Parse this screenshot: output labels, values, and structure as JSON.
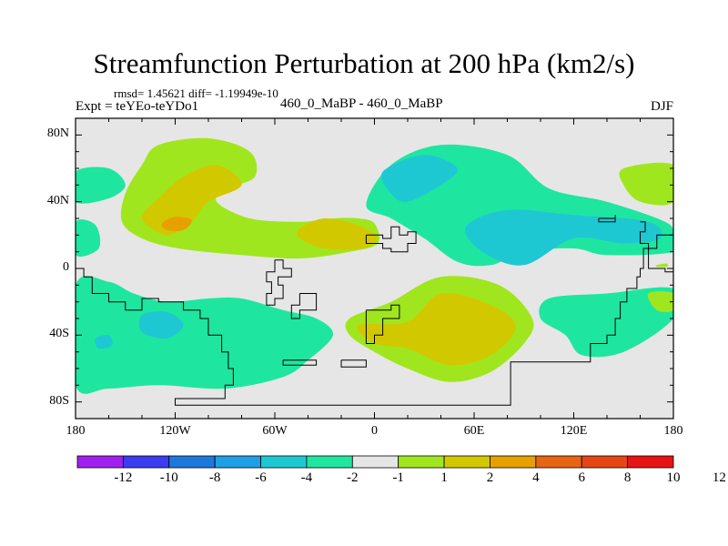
{
  "chart_data": {
    "type": "heatmap",
    "title": "Streamfunction Perturbation at 200 hPa (km2/s)",
    "stats_text": "rmsd= 1.45621 diff= -1.19949e-10",
    "experiment_label": "Expt = teYEo-teYDo1",
    "center_label": "460_0_MaBP - 460_0_MaBP",
    "season_label": "DJF",
    "xlim": [
      -180,
      180
    ],
    "ylim": [
      -90,
      90
    ],
    "x_ticks": [
      {
        "value": -180,
        "label": "180"
      },
      {
        "value": -120,
        "label": "120W"
      },
      {
        "value": -60,
        "label": "60W"
      },
      {
        "value": 0,
        "label": "0"
      },
      {
        "value": 60,
        "label": "60E"
      },
      {
        "value": 120,
        "label": "120E"
      },
      {
        "value": 180,
        "label": "180"
      }
    ],
    "y_ticks": [
      {
        "value": 80,
        "label": "80N"
      },
      {
        "value": 40,
        "label": "40N"
      },
      {
        "value": 0,
        "label": "0"
      },
      {
        "value": -40,
        "label": "40S"
      },
      {
        "value": -80,
        "label": "80S"
      }
    ],
    "colorbar": {
      "colors": [
        "#a020f0",
        "#3c3cf0",
        "#1e78dc",
        "#1ea0e6",
        "#1ec8d2",
        "#1ee6a0",
        "#e6e6e6",
        "#a0e61e",
        "#d2c800",
        "#e6a000",
        "#e66414",
        "#e64614",
        "#e61414"
      ],
      "labels": [
        "-12",
        "-10",
        "-8",
        "-6",
        "-4",
        "-2",
        "-1",
        "1",
        "2",
        "4",
        "6",
        "8",
        "10",
        "12"
      ]
    },
    "field_regions": [
      {
        "name": "north-pacific-positive",
        "level": 2,
        "color": "#a0e61e",
        "lonlat": [
          [
            -130,
            74
          ],
          [
            -100,
            78
          ],
          [
            -75,
            70
          ],
          [
            -72,
            55
          ],
          [
            -88,
            48
          ],
          [
            -95,
            40
          ],
          [
            -75,
            30
          ],
          [
            -45,
            28
          ],
          [
            -25,
            30
          ],
          [
            -10,
            30
          ],
          [
            0,
            27
          ],
          [
            2,
            15
          ],
          [
            -15,
            10
          ],
          [
            -45,
            6
          ],
          [
            -80,
            8
          ],
          [
            -118,
            12
          ],
          [
            -140,
            18
          ],
          [
            -152,
            28
          ],
          [
            -150,
            45
          ],
          [
            -140,
            62
          ]
        ]
      },
      {
        "name": "north-pacific-core",
        "level": 4,
        "color": "#d2c800",
        "lonlat": [
          [
            -140,
            30
          ],
          [
            -130,
            42
          ],
          [
            -115,
            55
          ],
          [
            -95,
            62
          ],
          [
            -80,
            50
          ],
          [
            -100,
            40
          ],
          [
            -110,
            28
          ],
          [
            -125,
            20
          ]
        ]
      },
      {
        "name": "north-pacific-max",
        "level": 6,
        "color": "#e6a000",
        "lonlat": [
          [
            -128,
            27
          ],
          [
            -120,
            31
          ],
          [
            -110,
            29
          ],
          [
            -115,
            23
          ],
          [
            -125,
            23
          ]
        ]
      },
      {
        "name": "north-atlantic-core",
        "level": 4,
        "color": "#d2c800",
        "lonlat": [
          [
            -45,
            24
          ],
          [
            -30,
            30
          ],
          [
            -10,
            26
          ],
          [
            2,
            18
          ],
          [
            -8,
            12
          ],
          [
            -30,
            12
          ],
          [
            -45,
            18
          ]
        ]
      },
      {
        "name": "eurasia-negative",
        "level": -2,
        "color": "#1ee6a0",
        "lonlat": [
          [
            -5,
            38
          ],
          [
            10,
            62
          ],
          [
            40,
            74
          ],
          [
            80,
            68
          ],
          [
            105,
            48
          ],
          [
            140,
            40
          ],
          [
            175,
            28
          ],
          [
            180,
            20
          ],
          [
            180,
            10
          ],
          [
            140,
            8
          ],
          [
            120,
            12
          ],
          [
            90,
            10
          ],
          [
            70,
            2
          ],
          [
            50,
            4
          ],
          [
            30,
            18
          ],
          [
            10,
            30
          ]
        ]
      },
      {
        "name": "eurasia-core",
        "level": -4,
        "color": "#1ec8d2",
        "lonlat": [
          [
            5,
            58
          ],
          [
            30,
            68
          ],
          [
            50,
            60
          ],
          [
            40,
            50
          ],
          [
            20,
            40
          ],
          [
            10,
            45
          ]
        ]
      },
      {
        "name": "asia-core",
        "level": -4,
        "color": "#1ec8d2",
        "lonlat": [
          [
            55,
            25
          ],
          [
            80,
            35
          ],
          [
            120,
            32
          ],
          [
            165,
            28
          ],
          [
            172,
            18
          ],
          [
            150,
            15
          ],
          [
            120,
            18
          ],
          [
            90,
            2
          ],
          [
            65,
            10
          ]
        ]
      },
      {
        "name": "south-indian-positive",
        "level": 2,
        "color": "#a0e61e",
        "lonlat": [
          [
            -15,
            -30
          ],
          [
            10,
            -20
          ],
          [
            40,
            -5
          ],
          [
            75,
            -10
          ],
          [
            95,
            -30
          ],
          [
            90,
            -45
          ],
          [
            70,
            -62
          ],
          [
            45,
            -68
          ],
          [
            20,
            -60
          ],
          [
            0,
            -50
          ],
          [
            -15,
            -40
          ]
        ]
      },
      {
        "name": "south-indian-core",
        "level": 4,
        "color": "#d2c800",
        "lonlat": [
          [
            -10,
            -34
          ],
          [
            20,
            -32
          ],
          [
            40,
            -15
          ],
          [
            70,
            -22
          ],
          [
            85,
            -35
          ],
          [
            70,
            -52
          ],
          [
            45,
            -58
          ],
          [
            20,
            -48
          ],
          [
            0,
            -45
          ]
        ]
      },
      {
        "name": "south-pacific-negative",
        "level": -2,
        "color": "#1ee6a0",
        "lonlat": [
          [
            -180,
            -10
          ],
          [
            -160,
            -8
          ],
          [
            -145,
            -15
          ],
          [
            -125,
            -20
          ],
          [
            -100,
            -18
          ],
          [
            -80,
            -18
          ],
          [
            -55,
            -25
          ],
          [
            -35,
            -30
          ],
          [
            -25,
            -40
          ],
          [
            -40,
            -55
          ],
          [
            -55,
            -65
          ],
          [
            -90,
            -72
          ],
          [
            -130,
            -70
          ],
          [
            -160,
            -72
          ],
          [
            -180,
            -70
          ]
        ]
      },
      {
        "name": "south-pacific-core",
        "level": -4,
        "color": "#1ec8d2",
        "lonlat": [
          [
            -140,
            -28
          ],
          [
            -125,
            -26
          ],
          [
            -115,
            -34
          ],
          [
            -125,
            -42
          ],
          [
            -140,
            -38
          ]
        ]
      },
      {
        "name": "south-pacific-small-core",
        "level": -4,
        "color": "#1ec8d2",
        "lonlat": [
          [
            -168,
            -42
          ],
          [
            -160,
            -40
          ],
          [
            -158,
            -46
          ],
          [
            -166,
            -48
          ]
        ]
      },
      {
        "name": "dateline-north-negative",
        "level": -2,
        "color": "#1ee6a0",
        "lonlat": [
          [
            -180,
            58
          ],
          [
            -160,
            60
          ],
          [
            -150,
            50
          ],
          [
            -160,
            42
          ],
          [
            -180,
            40
          ]
        ]
      },
      {
        "name": "dateline-east-negative",
        "level": -2,
        "color": "#1ee6a0",
        "lonlat": [
          [
            -180,
            28
          ],
          [
            -168,
            26
          ],
          [
            -166,
            12
          ],
          [
            -180,
            8
          ]
        ]
      },
      {
        "name": "south-central-negative",
        "level": -2,
        "color": "#1ee6a0",
        "lonlat": [
          [
            105,
            -18
          ],
          [
            140,
            -15
          ],
          [
            180,
            -12
          ],
          [
            180,
            -30
          ],
          [
            150,
            -50
          ],
          [
            125,
            -52
          ],
          [
            115,
            -40
          ],
          [
            100,
            -30
          ]
        ]
      },
      {
        "name": "northeast-positive",
        "level": 2,
        "color": "#a0e61e",
        "lonlat": [
          [
            150,
            60
          ],
          [
            180,
            62
          ],
          [
            180,
            40
          ],
          [
            160,
            40
          ],
          [
            150,
            50
          ]
        ]
      },
      {
        "name": "east-small-positive",
        "level": 2,
        "color": "#a0e61e",
        "lonlat": [
          [
            170,
            2
          ],
          [
            176,
            3
          ],
          [
            176,
            1
          ],
          [
            170,
            1
          ]
        ]
      },
      {
        "name": "east-edge-positive",
        "level": 2,
        "color": "#a0e61e",
        "lonlat": [
          [
            165,
            -15
          ],
          [
            180,
            -15
          ],
          [
            180,
            -25
          ],
          [
            170,
            -25
          ]
        ]
      }
    ],
    "coastlines": [
      {
        "name": "western-continent",
        "lonlat": [
          [
            -180,
            0
          ],
          [
            -175,
            -5
          ],
          [
            -170,
            -15
          ],
          [
            -160,
            -20
          ],
          [
            -150,
            -25
          ],
          [
            -140,
            -18
          ],
          [
            -130,
            -20
          ],
          [
            -115,
            -25
          ],
          [
            -105,
            -30
          ],
          [
            -100,
            -40
          ],
          [
            -92,
            -50
          ],
          [
            -88,
            -60
          ],
          [
            -85,
            -70
          ],
          [
            -90,
            -78
          ],
          [
            -120,
            -78
          ],
          [
            -120,
            -82
          ],
          [
            -40,
            -82
          ],
          [
            80,
            -82
          ],
          [
            82,
            -80
          ],
          [
            82,
            -56
          ],
          [
            120,
            -56
          ],
          [
            130,
            -45
          ],
          [
            140,
            -40
          ],
          [
            145,
            -30
          ],
          [
            148,
            -20
          ],
          [
            152,
            -12
          ],
          [
            158,
            -5
          ],
          [
            160,
            0
          ],
          [
            162,
            12
          ],
          [
            170,
            20
          ],
          [
            180,
            22
          ]
        ]
      },
      {
        "name": "south-islands-1",
        "lonlat": [
          [
            -55,
            -55
          ],
          [
            -35,
            -55
          ],
          [
            -35,
            -58
          ],
          [
            -55,
            -58
          ],
          [
            -55,
            -55
          ]
        ]
      },
      {
        "name": "south-islands-2",
        "lonlat": [
          [
            -20,
            -55
          ],
          [
            -5,
            -55
          ],
          [
            -5,
            -59
          ],
          [
            -20,
            -59
          ],
          [
            -20,
            -55
          ]
        ]
      },
      {
        "name": "central-block-1",
        "lonlat": [
          [
            -60,
            5
          ],
          [
            -55,
            0
          ],
          [
            -50,
            -5
          ],
          [
            -58,
            -10
          ],
          [
            -55,
            -18
          ],
          [
            -60,
            -22
          ],
          [
            -65,
            -15
          ],
          [
            -62,
            -8
          ],
          [
            -65,
            -2
          ],
          [
            -60,
            5
          ]
        ]
      },
      {
        "name": "central-block-2",
        "lonlat": [
          [
            -45,
            -15
          ],
          [
            -35,
            -15
          ],
          [
            -35,
            -25
          ],
          [
            -45,
            -30
          ],
          [
            -50,
            -22
          ],
          [
            -45,
            -15
          ]
        ]
      },
      {
        "name": "central-block-3",
        "lonlat": [
          [
            -5,
            20
          ],
          [
            5,
            18
          ],
          [
            10,
            25
          ],
          [
            15,
            20
          ],
          [
            20,
            22
          ],
          [
            25,
            15
          ],
          [
            20,
            10
          ],
          [
            10,
            12
          ],
          [
            5,
            15
          ],
          [
            -5,
            20
          ]
        ]
      },
      {
        "name": "southern-africa-outline",
        "lonlat": [
          [
            -5,
            -25
          ],
          [
            10,
            -22
          ],
          [
            15,
            -30
          ],
          [
            5,
            -40
          ],
          [
            0,
            -45
          ],
          [
            -5,
            -38
          ],
          [
            -5,
            -25
          ]
        ]
      },
      {
        "name": "north-east-island",
        "lonlat": [
          [
            135,
            30
          ],
          [
            145,
            32
          ],
          [
            145,
            28
          ],
          [
            135,
            28
          ],
          [
            135,
            30
          ]
        ]
      },
      {
        "name": "east-chain",
        "lonlat": [
          [
            160,
            28
          ],
          [
            163,
            22
          ],
          [
            160,
            15
          ],
          [
            165,
            10
          ],
          [
            165,
            0
          ],
          [
            175,
            -2
          ],
          [
            180,
            0
          ]
        ]
      }
    ]
  }
}
